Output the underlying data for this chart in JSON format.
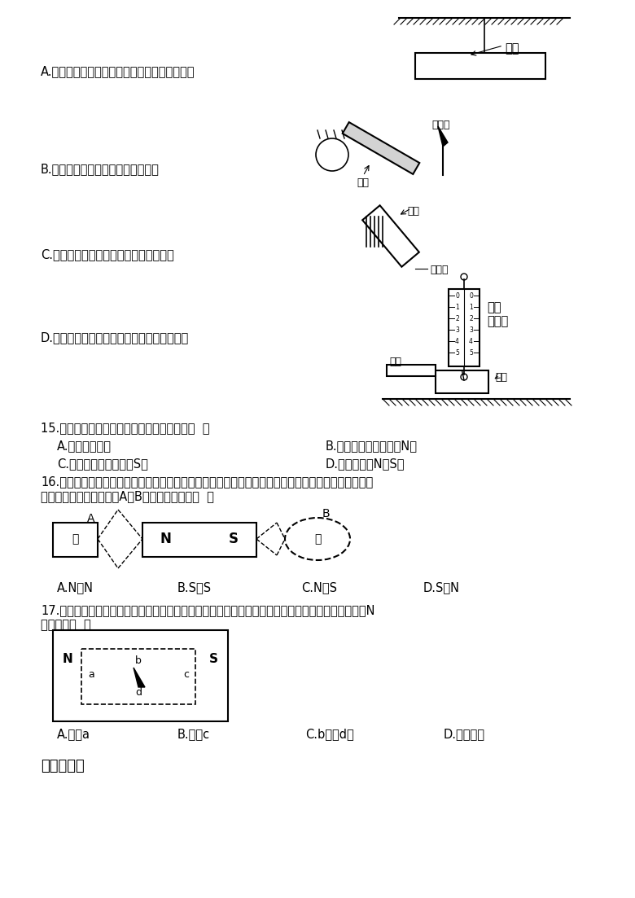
{
  "bg_color": "#ffffff",
  "text_color": "#000000",
  "fig_width": 7.8,
  "fig_height": 11.03,
  "label_A": "A.将悬挂的铁棒多次转动，静止时总是南北指向",
  "label_B": "B.将铁棒一端靠近小磁针，相互吸引",
  "label_C": "C.将铁棒一端靠近大头针，大头针被吸引",
  "label_D": "D.水平向右移动铁棒，弹簧测力计示数有变化",
  "q15_text": "15.将一根条形磁铁分为三段，则中间的一段（  ）",
  "q15_A": "A.一定没有磁性",
  "q15_B": "B.一定有磁性，但只有N极",
  "q15_C": "C.一定有磁性，但只有S极",
  "q15_D": "D.有磁性且有N、S极",
  "q16_line1": "16.如图所示，甲、乙为条形磁体，中间是已知极性的条形磁体，虚线是表示磁极间的磁场分布情况的磁",
  "q16_line2": "感应线。则可以判断图中A、B两个磁极依次是（  ）",
  "q16_A": "A.N、N",
  "q16_B": "B.S、S",
  "q16_C": "C.N、S",
  "q16_D": "D.S、N",
  "q17_line1": "17.如图所示，将大的条形磁铁中间挖去一块，放入一可以自由转动的小磁针，当小磁针静止时，它的N",
  "q17_line2": "极应指向（  ）",
  "q17_A": "A.左边a",
  "q17_B": "B.右边c",
  "q17_C": "C.b边或d边",
  "q17_D": "D.不能确定",
  "section2": "二、填空题",
  "fs": 10.5,
  "fs_small": 9,
  "fs_label": 10
}
